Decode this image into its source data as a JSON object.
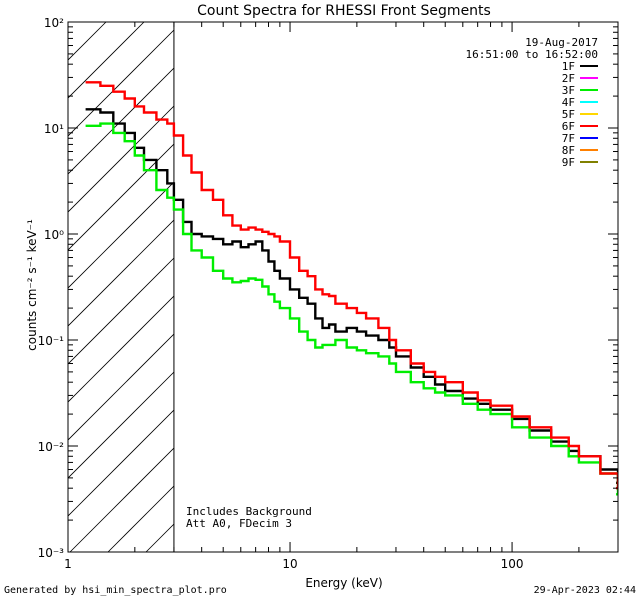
{
  "chart_data": {
    "type": "line",
    "title": "Count Spectra for RHESSI Front Segments",
    "xlabel": "Energy (keV)",
    "ylabel": "counts cm⁻² s⁻¹ keV⁻¹",
    "xscale": "log",
    "yscale": "log",
    "xlim": [
      1,
      300
    ],
    "ylim": [
      0.001,
      100
    ],
    "x_ticks": [
      {
        "value": 1,
        "label": "1"
      },
      {
        "value": 10,
        "label": "10"
      },
      {
        "value": 100,
        "label": "100"
      }
    ],
    "y_ticks": [
      {
        "value": 0.001,
        "label": "10⁻³"
      },
      {
        "value": 0.01,
        "label": "10⁻²"
      },
      {
        "value": 0.1,
        "label": "10⁻¹"
      },
      {
        "value": 1,
        "label": "10⁰"
      },
      {
        "value": 10,
        "label": "10¹"
      },
      {
        "value": 100,
        "label": "10²"
      }
    ],
    "shaded_region": {
      "xmin": 1,
      "xmax": 3,
      "style": "diagonal-hatch"
    },
    "date": "19-Aug-2017",
    "time_range": "16:51:00 to 16:52:00",
    "legend_position": "top-right",
    "legend": [
      {
        "name": "1F",
        "color": "#000000"
      },
      {
        "name": "2F",
        "color": "#ff00ff"
      },
      {
        "name": "3F",
        "color": "#00ee00"
      },
      {
        "name": "4F",
        "color": "#00ffff"
      },
      {
        "name": "5F",
        "color": "#ffd700"
      },
      {
        "name": "6F",
        "color": "#ff0000"
      },
      {
        "name": "7F",
        "color": "#0000ff"
      },
      {
        "name": "8F",
        "color": "#ff8000"
      },
      {
        "name": "9F",
        "color": "#808000"
      }
    ],
    "annotations": [
      "Includes Background",
      "Att A0, FDecim 3"
    ],
    "series": [
      {
        "name": "1F",
        "color": "#000000",
        "x": [
          1.2,
          1.4,
          1.6,
          1.8,
          2.0,
          2.2,
          2.5,
          2.8,
          3.0,
          3.3,
          3.6,
          4.0,
          4.5,
          5.0,
          5.5,
          6.0,
          6.5,
          7.0,
          7.5,
          8.0,
          8.5,
          9.0,
          10.0,
          11.0,
          12.0,
          13.0,
          14.0,
          15.0,
          16.0,
          18.0,
          20.0,
          22.0,
          25.0,
          28.0,
          30.0,
          35.0,
          40.0,
          45.0,
          50.0,
          60.0,
          70.0,
          80.0,
          100.0,
          120.0,
          150.0,
          180.0,
          200.0,
          250.0,
          300.0
        ],
        "y": [
          15,
          14,
          11,
          9,
          6.5,
          5,
          4.0,
          3.0,
          2.1,
          1.3,
          1.0,
          0.95,
          0.9,
          0.8,
          0.85,
          0.75,
          0.8,
          0.85,
          0.7,
          0.55,
          0.45,
          0.38,
          0.3,
          0.25,
          0.22,
          0.16,
          0.13,
          0.14,
          0.12,
          0.13,
          0.12,
          0.11,
          0.1,
          0.085,
          0.07,
          0.055,
          0.045,
          0.038,
          0.033,
          0.028,
          0.025,
          0.022,
          0.018,
          0.014,
          0.011,
          0.009,
          0.008,
          0.006,
          0.0045
        ]
      },
      {
        "name": "3F",
        "color": "#00ee00",
        "x": [
          1.2,
          1.4,
          1.6,
          1.8,
          2.0,
          2.2,
          2.5,
          2.8,
          3.0,
          3.3,
          3.6,
          4.0,
          4.5,
          5.0,
          5.5,
          6.0,
          6.5,
          7.0,
          7.5,
          8.0,
          8.5,
          9.0,
          10.0,
          11.0,
          12.0,
          13.0,
          14.0,
          15.0,
          16.0,
          18.0,
          20.0,
          22.0,
          25.0,
          28.0,
          30.0,
          35.0,
          40.0,
          45.0,
          50.0,
          60.0,
          70.0,
          80.0,
          100.0,
          120.0,
          150.0,
          180.0,
          200.0,
          250.0,
          300.0
        ],
        "y": [
          10.5,
          11,
          9,
          7.5,
          5.5,
          4,
          2.6,
          2.2,
          1.7,
          1.0,
          0.7,
          0.6,
          0.45,
          0.38,
          0.35,
          0.36,
          0.38,
          0.37,
          0.32,
          0.27,
          0.23,
          0.2,
          0.16,
          0.12,
          0.1,
          0.085,
          0.09,
          0.09,
          0.1,
          0.085,
          0.08,
          0.075,
          0.07,
          0.06,
          0.05,
          0.04,
          0.035,
          0.032,
          0.03,
          0.025,
          0.022,
          0.02,
          0.015,
          0.012,
          0.01,
          0.008,
          0.007,
          0.0055,
          0.0035
        ]
      },
      {
        "name": "6F",
        "color": "#ff0000",
        "x": [
          1.2,
          1.4,
          1.6,
          1.8,
          2.0,
          2.2,
          2.5,
          2.8,
          3.0,
          3.3,
          3.6,
          4.0,
          4.5,
          5.0,
          5.5,
          6.0,
          6.5,
          7.0,
          7.5,
          8.0,
          8.5,
          9.0,
          10.0,
          11.0,
          12.0,
          13.0,
          14.0,
          15.0,
          16.0,
          18.0,
          20.0,
          22.0,
          25.0,
          28.0,
          30.0,
          35.0,
          40.0,
          45.0,
          50.0,
          60.0,
          70.0,
          80.0,
          100.0,
          120.0,
          150.0,
          180.0,
          200.0,
          250.0,
          300.0
        ],
        "y": [
          27,
          25,
          22,
          19,
          16,
          14,
          12,
          11,
          8.5,
          5.5,
          3.8,
          2.6,
          2.1,
          1.5,
          1.2,
          1.1,
          1.15,
          1.1,
          1.05,
          1.0,
          0.95,
          0.85,
          0.6,
          0.45,
          0.4,
          0.3,
          0.27,
          0.26,
          0.22,
          0.2,
          0.18,
          0.16,
          0.13,
          0.1,
          0.08,
          0.06,
          0.05,
          0.045,
          0.04,
          0.032,
          0.027,
          0.024,
          0.019,
          0.015,
          0.012,
          0.01,
          0.008,
          0.0055,
          0.004
        ]
      }
    ]
  },
  "footer": {
    "left": "Generated by hsi_min_spectra_plot.pro",
    "right": "29-Apr-2023 02:44"
  }
}
